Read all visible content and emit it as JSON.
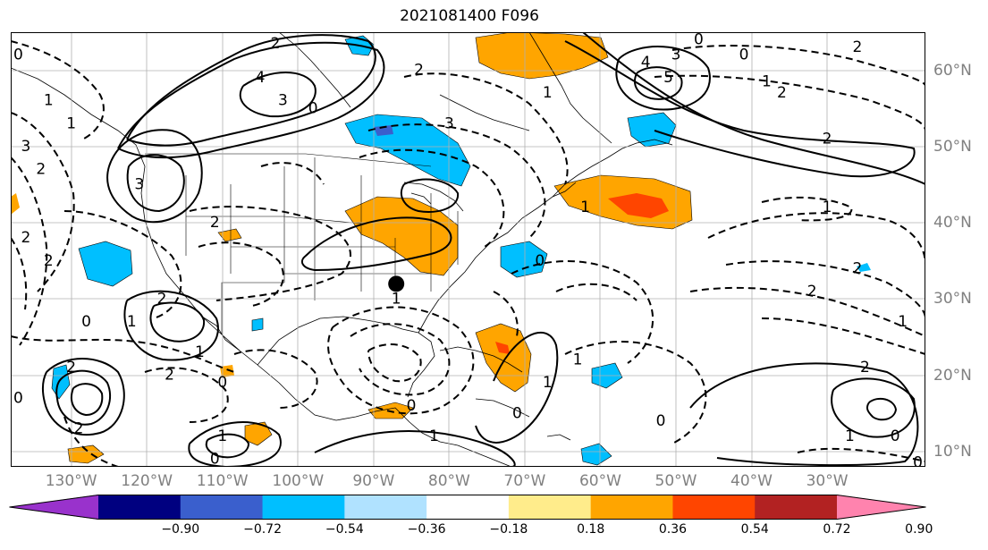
{
  "title": "2021081400 F096",
  "map": {
    "region": "North Atlantic / North America",
    "projection": "equirectangular",
    "lon_range": [
      -138,
      -17
    ],
    "lat_range": [
      8,
      65
    ],
    "lon_labels": [
      "130°W",
      "120°W",
      "110°W",
      "100°W",
      "90°W",
      "80°W",
      "70°W",
      "60°W",
      "50°W",
      "40°W",
      "30°W"
    ],
    "lon_values": [
      -130,
      -120,
      -110,
      -100,
      -90,
      -80,
      -70,
      -60,
      -50,
      -40,
      -30
    ],
    "lat_labels": [
      "10°N",
      "20°N",
      "30°N",
      "40°N",
      "50°N",
      "60°N"
    ],
    "lat_values": [
      10,
      20,
      30,
      40,
      50,
      60
    ],
    "marker": {
      "name": "black-dot",
      "lon": -87,
      "lat": 32
    },
    "contour_labels": [
      {
        "text": "2",
        "lon": -103,
        "lat": 63.5
      },
      {
        "text": "4",
        "lon": -105,
        "lat": 59
      },
      {
        "text": "3",
        "lon": -102,
        "lat": 56
      },
      {
        "text": "3",
        "lon": -121,
        "lat": 45
      },
      {
        "text": "1",
        "lon": -130,
        "lat": 53
      },
      {
        "text": "0",
        "lon": -98,
        "lat": 55
      },
      {
        "text": "3",
        "lon": -80,
        "lat": 53
      },
      {
        "text": "2",
        "lon": -84,
        "lat": 60
      },
      {
        "text": "4",
        "lon": -54,
        "lat": 61
      },
      {
        "text": "5",
        "lon": -51,
        "lat": 59
      },
      {
        "text": "3",
        "lon": -50,
        "lat": 62
      },
      {
        "text": "0",
        "lon": -47,
        "lat": 64
      },
      {
        "text": "0",
        "lon": -41,
        "lat": 62
      },
      {
        "text": "1",
        "lon": -38,
        "lat": 58.5
      },
      {
        "text": "2",
        "lon": -26,
        "lat": 63
      },
      {
        "text": "2",
        "lon": -36,
        "lat": 57
      },
      {
        "text": "2",
        "lon": -30,
        "lat": 51
      },
      {
        "text": "1",
        "lon": -30,
        "lat": 42
      },
      {
        "text": "2",
        "lon": -26,
        "lat": 34
      },
      {
        "text": "2",
        "lon": -32,
        "lat": 31
      },
      {
        "text": "1",
        "lon": -20,
        "lat": 27
      },
      {
        "text": "2",
        "lon": -25,
        "lat": 21
      },
      {
        "text": "1",
        "lon": -27,
        "lat": 12
      },
      {
        "text": "0",
        "lon": -21,
        "lat": 12
      },
      {
        "text": "0",
        "lon": -18,
        "lat": 8.5
      },
      {
        "text": "0",
        "lon": -52,
        "lat": 14
      },
      {
        "text": "1",
        "lon": -63,
        "lat": 22
      },
      {
        "text": "1",
        "lon": -67,
        "lat": 19
      },
      {
        "text": "0",
        "lon": -85,
        "lat": 16
      },
      {
        "text": "0",
        "lon": -71,
        "lat": 15
      },
      {
        "text": "1",
        "lon": -87,
        "lat": 30
      },
      {
        "text": "1",
        "lon": -82,
        "lat": 12
      },
      {
        "text": "1",
        "lon": -113,
        "lat": 23
      },
      {
        "text": "2",
        "lon": -117,
        "lat": 20
      },
      {
        "text": "0",
        "lon": -110,
        "lat": 19
      },
      {
        "text": "0",
        "lon": -128,
        "lat": 27
      },
      {
        "text": "1",
        "lon": -122,
        "lat": 27
      },
      {
        "text": "2",
        "lon": -118,
        "lat": 30
      },
      {
        "text": "2",
        "lon": -130,
        "lat": 21
      },
      {
        "text": "2",
        "lon": -129,
        "lat": 13
      },
      {
        "text": "0",
        "lon": -137,
        "lat": 17
      },
      {
        "text": "1",
        "lon": -110,
        "lat": 12
      },
      {
        "text": "0",
        "lon": -111,
        "lat": 9
      },
      {
        "text": "2",
        "lon": -133,
        "lat": 35
      },
      {
        "text": "2",
        "lon": -136,
        "lat": 38
      },
      {
        "text": "2",
        "lon": -134,
        "lat": 47
      },
      {
        "text": "3",
        "lon": -136,
        "lat": 50
      },
      {
        "text": "1",
        "lon": -133,
        "lat": 56
      },
      {
        "text": "0",
        "lon": -137,
        "lat": 62
      },
      {
        "text": "2",
        "lon": -111,
        "lat": 40
      },
      {
        "text": "1",
        "lon": -67,
        "lat": 57
      },
      {
        "text": "1",
        "lon": -62,
        "lat": 42
      },
      {
        "text": "0",
        "lon": -68,
        "lat": 35
      }
    ]
  },
  "colorbar": {
    "colors": [
      "#9932cc",
      "#000080",
      "#3a5fcd",
      "#00bfff",
      "#b0e2ff",
      "#ffffff",
      "#ffec8b",
      "#ffa500",
      "#ff4500",
      "#b22222",
      "#ff83ae"
    ],
    "labels": [
      "−0.90",
      "−0.72",
      "−0.54",
      "−0.36",
      "−0.18",
      "0.18",
      "0.36",
      "0.54",
      "0.72",
      "0.90"
    ]
  }
}
